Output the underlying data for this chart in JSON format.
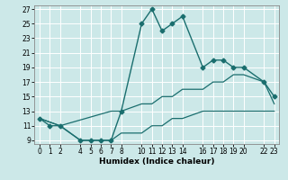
{
  "xlabel": "Humidex (Indice chaleur)",
  "background_color": "#cce8e8",
  "grid_color": "#ffffff",
  "line_color": "#1a6e6e",
  "xlim": [
    -0.5,
    23.5
  ],
  "ylim": [
    8.5,
    27.5
  ],
  "xticks": [
    0,
    1,
    2,
    4,
    5,
    6,
    7,
    8,
    10,
    11,
    12,
    13,
    14,
    16,
    17,
    18,
    19,
    20,
    22,
    23
  ],
  "yticks": [
    9,
    11,
    13,
    15,
    17,
    19,
    21,
    23,
    25,
    27
  ],
  "series": [
    {
      "x": [
        0,
        1,
        2,
        4,
        5,
        6,
        7,
        8,
        10,
        11,
        12,
        13,
        14,
        16,
        17,
        18,
        19,
        20,
        22,
        23
      ],
      "y": [
        12,
        11,
        11,
        9,
        9,
        9,
        9,
        13,
        25,
        27,
        24,
        25,
        26,
        19,
        20,
        20,
        19,
        19,
        17,
        15
      ],
      "style": "solid",
      "marker": "D",
      "markersize": 2.5,
      "linewidth": 1.0
    },
    {
      "x": [
        0,
        2,
        7,
        8,
        10,
        11,
        12,
        13,
        14,
        16,
        17,
        18,
        19,
        20,
        22,
        23
      ],
      "y": [
        12,
        11,
        13,
        13,
        14,
        14,
        15,
        15,
        16,
        16,
        17,
        17,
        18,
        18,
        17,
        14
      ],
      "style": "solid",
      "marker": null,
      "markersize": 0,
      "linewidth": 0.9
    },
    {
      "x": [
        0,
        2,
        4,
        5,
        6,
        7,
        8,
        10,
        11,
        12,
        13,
        14,
        16,
        17,
        18,
        19,
        20,
        22,
        23
      ],
      "y": [
        12,
        11,
        9,
        9,
        9,
        9,
        10,
        10,
        11,
        11,
        12,
        12,
        13,
        13,
        13,
        13,
        13,
        13,
        13
      ],
      "style": "solid",
      "marker": null,
      "markersize": 0,
      "linewidth": 0.9
    }
  ]
}
